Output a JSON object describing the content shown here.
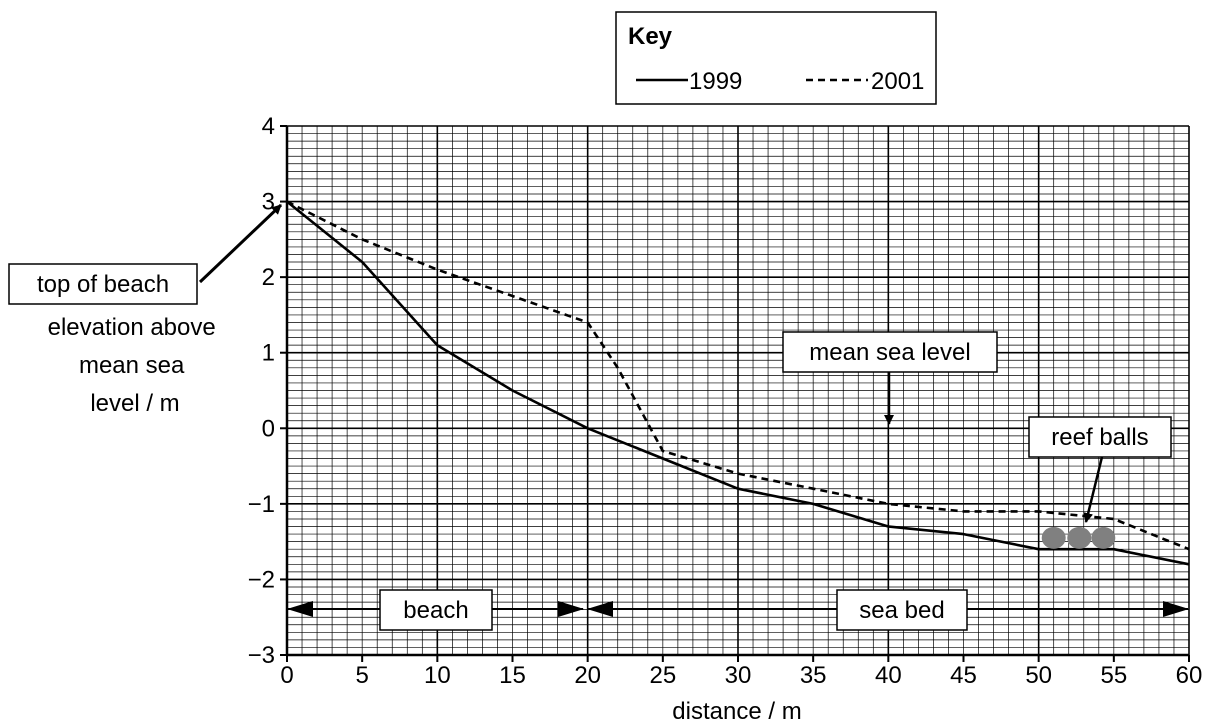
{
  "chart_data": {
    "type": "line",
    "xlabel": "distance / m",
    "ylabel_lines": [
      "elevation above",
      "mean sea",
      "level / m"
    ],
    "xlim": [
      0,
      60
    ],
    "ylim": [
      -3,
      4
    ],
    "xticks": [
      0,
      5,
      10,
      15,
      20,
      25,
      30,
      35,
      40,
      45,
      50,
      55,
      60
    ],
    "yticks": [
      4,
      3,
      2,
      1,
      0,
      -1,
      -2,
      -3
    ],
    "ytick_labels": [
      "4",
      "3",
      "2",
      "1",
      "0",
      "−1",
      "−2",
      "−3"
    ],
    "grid": true,
    "legend_position": "top-center",
    "legend_title": "Key",
    "series": [
      {
        "name": "1999",
        "style": "solid",
        "x": [
          0,
          5,
          10,
          15,
          20,
          25,
          30,
          35,
          40,
          45,
          50,
          55,
          60
        ],
        "y": [
          3.0,
          2.2,
          1.1,
          0.5,
          0.0,
          -0.4,
          -0.8,
          -1.0,
          -1.3,
          -1.4,
          -1.6,
          -1.6,
          -1.8
        ]
      },
      {
        "name": "2001",
        "style": "dashed",
        "x": [
          0,
          5,
          10,
          15,
          20,
          22,
          25,
          30,
          35,
          40,
          45,
          50,
          55,
          60
        ],
        "y": [
          3.0,
          2.5,
          2.1,
          1.75,
          1.4,
          0.8,
          -0.3,
          -0.6,
          -0.8,
          -1.0,
          -1.1,
          -1.1,
          -1.2,
          -1.6
        ]
      }
    ],
    "annotations": {
      "top_of_beach": "top of beach",
      "mean_sea_level": "mean sea level",
      "reef_balls": "reef balls",
      "beach": "beach",
      "sea_bed": "sea bed"
    },
    "reef_balls_x": [
      51,
      52.7,
      54.3
    ],
    "reef_balls_y": -1.45,
    "beach_extent": [
      0,
      20
    ],
    "sea_bed_extent": [
      20,
      60
    ],
    "zones_y": -2.4,
    "colors": {
      "line": "#000000",
      "grid": "#000000",
      "reef_ball": "#808080"
    }
  }
}
